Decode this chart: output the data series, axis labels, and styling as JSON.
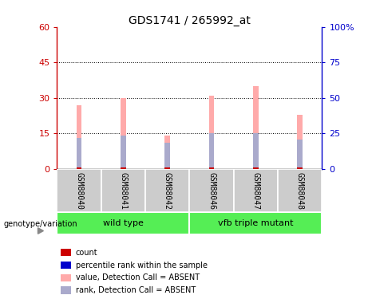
{
  "title": "GDS1741 / 265992_at",
  "samples": [
    "GSM88040",
    "GSM88041",
    "GSM88042",
    "GSM88046",
    "GSM88047",
    "GSM88048"
  ],
  "pink_values": [
    27.0,
    30.0,
    14.0,
    31.0,
    35.0,
    23.0
  ],
  "blue_values": [
    13.0,
    14.0,
    11.0,
    15.0,
    15.0,
    12.5
  ],
  "ylim_left": [
    0,
    60
  ],
  "ylim_right": [
    0,
    100
  ],
  "yticks_left": [
    0,
    15,
    30,
    45,
    60
  ],
  "yticks_right": [
    0,
    25,
    50,
    75,
    100
  ],
  "ytick_labels_right": [
    "0",
    "25",
    "50",
    "75",
    "100%"
  ],
  "left_axis_color": "#cc0000",
  "right_axis_color": "#0000cc",
  "bar_pink": "#ffaaaa",
  "bar_blue": "#aaaacc",
  "bar_red": "#cc0000",
  "sample_bg_color": "#cccccc",
  "group_color": "#55ee55",
  "legend_items": [
    {
      "color": "#cc0000",
      "label": "count"
    },
    {
      "color": "#0000cc",
      "label": "percentile rank within the sample"
    },
    {
      "color": "#ffaaaa",
      "label": "value, Detection Call = ABSENT"
    },
    {
      "color": "#aaaacc",
      "label": "rank, Detection Call = ABSENT"
    }
  ],
  "genotype_label": "genotype/variation"
}
